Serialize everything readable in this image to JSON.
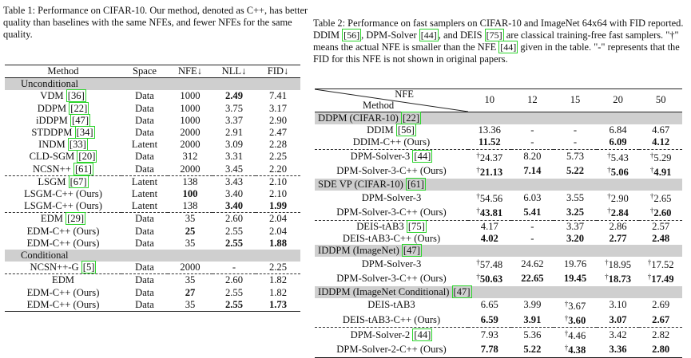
{
  "table1": {
    "caption": "Table 1: Performance on CIFAR-10. Our method, denoted as C++, has better quality than baselines with the same NFEs, and fewer NFEs for the same quality.",
    "headers": [
      "Method",
      "Space",
      "NFE↓",
      "NLL↓",
      "FID↓"
    ],
    "sections": [
      {
        "title": "Unconditional",
        "rows": [
          {
            "method": "VDM",
            "ref": "36",
            "space": "Data",
            "nfe": "1000",
            "nll": "2.49",
            "fid": "7.41",
            "bold": [
              "nll"
            ]
          },
          {
            "method": "DDPM",
            "ref": "22",
            "space": "Data",
            "nfe": "1000",
            "nll": "3.75",
            "fid": "3.17",
            "bold": []
          },
          {
            "method": "iDDPM",
            "ref": "47",
            "space": "Data",
            "nfe": "1000",
            "nll": "3.37",
            "fid": "2.90",
            "bold": []
          },
          {
            "method": "STDDPM",
            "ref": "34",
            "space": "Data",
            "nfe": "2000",
            "nll": "2.91",
            "fid": "2.47",
            "bold": []
          },
          {
            "method": "INDM",
            "ref": "33",
            "space": "Latent",
            "nfe": "2000",
            "nll": "3.09",
            "fid": "2.28",
            "bold": []
          },
          {
            "method": "CLD-SGM",
            "ref": "20",
            "space": "Data",
            "nfe": "312",
            "nll": "3.31",
            "fid": "2.25",
            "bold": []
          },
          {
            "method": "NCSN++",
            "ref": "61",
            "space": "Data",
            "nfe": "2000",
            "nll": "3.45",
            "fid": "2.20",
            "bold": []
          },
          {
            "method": "LSGM",
            "ref": "67",
            "space": "Latent",
            "nfe": "138",
            "nll": "3.43",
            "fid": "2.10",
            "bold": [],
            "dashed": true
          },
          {
            "method": "LSGM-C++ (Ours)",
            "ref": "",
            "space": "Latent",
            "nfe": "100",
            "nll": "3.40",
            "fid": "2.10",
            "bold": [
              "nfe"
            ]
          },
          {
            "method": "LSGM-C++ (Ours)",
            "ref": "",
            "space": "Latent",
            "nfe": "138",
            "nll": "3.40",
            "fid": "1.99",
            "bold": [
              "nll",
              "fid"
            ]
          },
          {
            "method": "EDM",
            "ref": "29",
            "space": "Data",
            "nfe": "35",
            "nll": "2.60",
            "fid": "2.04",
            "bold": [],
            "dashed": true
          },
          {
            "method": "EDM-C++ (Ours)",
            "ref": "",
            "space": "Data",
            "nfe": "25",
            "nll": "2.55",
            "fid": "2.04",
            "bold": [
              "nfe"
            ]
          },
          {
            "method": "EDM-C++ (Ours)",
            "ref": "",
            "space": "Data",
            "nfe": "35",
            "nll": "2.55",
            "fid": "1.88",
            "bold": [
              "nll",
              "fid"
            ]
          }
        ]
      },
      {
        "title": "Conditional",
        "rows": [
          {
            "method": "NCSN++-G",
            "ref": "5",
            "space": "Data",
            "nfe": "2000",
            "nll": "-",
            "fid": "2.25",
            "bold": []
          },
          {
            "method": "EDM",
            "ref": "",
            "space": "Data",
            "nfe": "35",
            "nll": "2.60",
            "fid": "1.82",
            "bold": [],
            "dashed": true
          },
          {
            "method": "EDM-C++ (Ours)",
            "ref": "",
            "space": "Data",
            "nfe": "27",
            "nll": "2.55",
            "fid": "1.82",
            "bold": [
              "nfe"
            ]
          },
          {
            "method": "EDM-C++ (Ours)",
            "ref": "",
            "space": "Data",
            "nfe": "35",
            "nll": "2.55",
            "fid": "1.73",
            "bold": [
              "nll",
              "fid"
            ]
          }
        ]
      }
    ]
  },
  "table2": {
    "caption": "Table 2: Performance on fast samplers on CIFAR-10 and ImageNet 64x64 with FID reported. DDIM [56], DPM-Solver [44], and DEIS [75] are classical training-free fast samplers. \"†\" means the actual NFE is smaller than the NFE [44] given in the table. \"-\" represents that the FID for this NFE is not shown in original papers.",
    "header_nfe": "NFE",
    "header_method": "Method",
    "nfe_values": [
      "10",
      "12",
      "15",
      "20",
      "50"
    ],
    "sections": [
      {
        "title": "DDPM (CIFAR-10)",
        "ref": "22",
        "rows": [
          {
            "method": "DDIM",
            "ref": "56",
            "values": [
              "13.36",
              "-",
              "-",
              "6.84",
              "4.67"
            ],
            "bold": [],
            "dagger": []
          },
          {
            "method": "DDIM-C++ (Ours)",
            "ref": "",
            "values": [
              "11.52",
              "-",
              "-",
              "6.09",
              "4.12"
            ],
            "bold": [
              0,
              3,
              4
            ],
            "dagger": []
          },
          {
            "method": "DPM-Solver-3",
            "ref": "44",
            "values": [
              "24.37",
              "8.20",
              "5.73",
              "5.43",
              "5.29"
            ],
            "bold": [],
            "dagger": [
              0,
              3,
              4
            ],
            "dashed": true
          },
          {
            "method": "DPM-Solver-3-C++ (Ours)",
            "ref": "",
            "values": [
              "21.13",
              "7.14",
              "5.22",
              "5.06",
              "4.91"
            ],
            "bold": [
              0,
              1,
              2,
              3,
              4
            ],
            "dagger": [
              0,
              3,
              4
            ]
          }
        ]
      },
      {
        "title": "SDE VP (CIFAR-10)",
        "ref": "61",
        "rows": [
          {
            "method": "DPM-Solver-3",
            "ref": "",
            "values": [
              "54.56",
              "6.03",
              "3.55",
              "2.90",
              "2.65"
            ],
            "bold": [],
            "dagger": [
              0,
              3,
              4
            ]
          },
          {
            "method": "DPM-Solver-3-C++ (Ours)",
            "ref": "",
            "values": [
              "43.81",
              "5.41",
              "3.25",
              "2.84",
              "2.60"
            ],
            "bold": [
              0,
              1,
              2,
              3,
              4
            ],
            "dagger": [
              0,
              3,
              4
            ]
          },
          {
            "method": "DEIS-tAB3",
            "ref": "75",
            "values": [
              "4.17",
              "-",
              "3.37",
              "2.86",
              "2.57"
            ],
            "bold": [],
            "dagger": [],
            "dashed": true
          },
          {
            "method": "DEIS-tAB3-C++ (Ours)",
            "ref": "",
            "values": [
              "4.02",
              "-",
              "3.20",
              "2.77",
              "2.48"
            ],
            "bold": [
              0,
              2,
              3,
              4
            ],
            "dagger": []
          }
        ]
      },
      {
        "title": "IDDPM (ImageNet)",
        "ref": "47",
        "rows": [
          {
            "method": "DPM-Solver-3",
            "ref": "",
            "values": [
              "57.48",
              "24.62",
              "19.76",
              "18.95",
              "17.52"
            ],
            "bold": [],
            "dagger": [
              0,
              3,
              4
            ]
          },
          {
            "method": "DPM-Solver-3-C++ (Ours)",
            "ref": "",
            "values": [
              "50.63",
              "22.65",
              "19.45",
              "18.73",
              "17.49"
            ],
            "bold": [
              0,
              1,
              2,
              3,
              4
            ],
            "dagger": [
              0,
              3,
              4
            ]
          }
        ]
      },
      {
        "title": "IDDPM (ImageNet Conditional)",
        "ref": "47",
        "rows": [
          {
            "method": "DEIS-tAB3",
            "ref": "",
            "values": [
              "6.65",
              "3.99",
              "3.67",
              "3.10",
              "2.69"
            ],
            "bold": [],
            "dagger": [
              2
            ]
          },
          {
            "method": "DEIS-tAB3-C++ (Ours)",
            "ref": "",
            "values": [
              "6.59",
              "3.91",
              "3.60",
              "3.07",
              "2.67"
            ],
            "bold": [
              0,
              1,
              2,
              3,
              4
            ],
            "dagger": [
              2
            ]
          },
          {
            "method": "DPM-Solver-2",
            "ref": "44",
            "values": [
              "7.93",
              "5.36",
              "4.46",
              "3.42",
              "2.82"
            ],
            "bold": [],
            "dagger": [
              2
            ],
            "dashed": true
          },
          {
            "method": "DPM-Solver-2-C++ (Ours)",
            "ref": "",
            "values": [
              "7.78",
              "5.22",
              "4.38",
              "3.36",
              "2.80"
            ],
            "bold": [
              0,
              1,
              2,
              3,
              4
            ],
            "dagger": [
              2
            ]
          }
        ]
      }
    ]
  }
}
